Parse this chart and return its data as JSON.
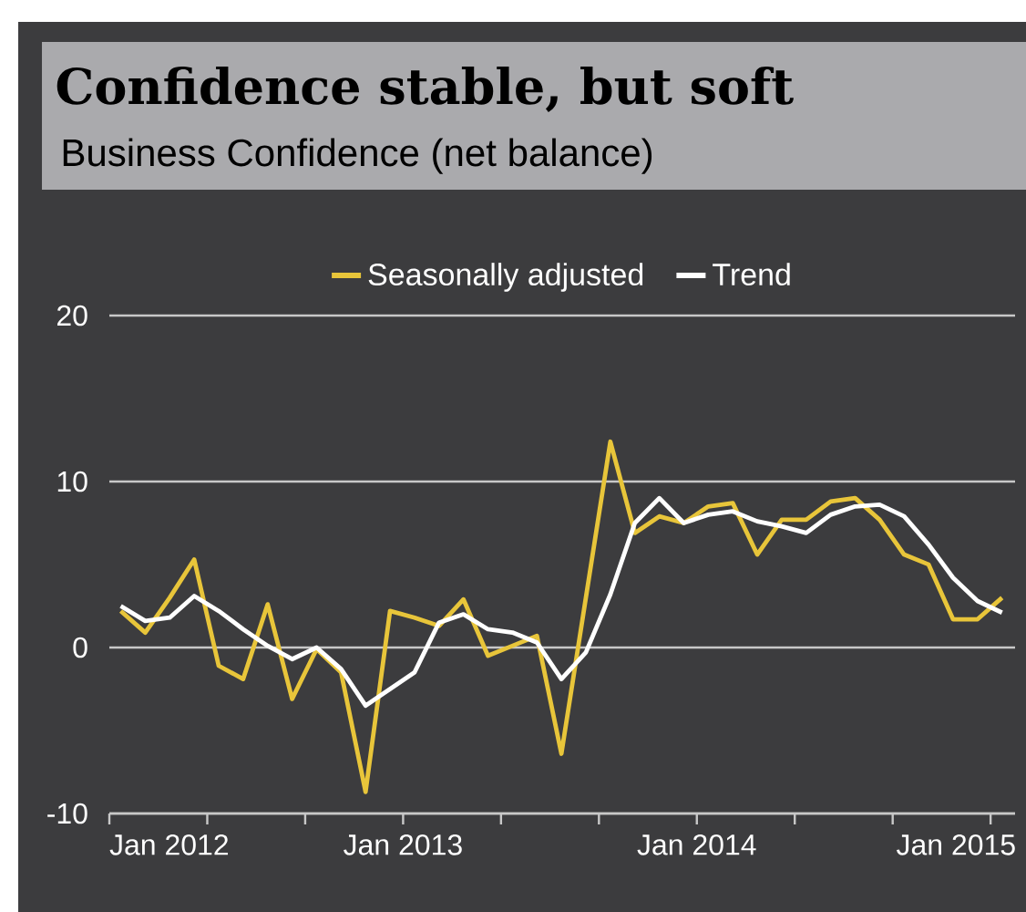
{
  "chart_data": {
    "type": "line",
    "title": "Confidence stable, but soft",
    "subtitle": "Business Confidence (net balance)",
    "x": [
      "2012-01-15",
      "2012-02-15",
      "2012-03-15",
      "2012-04-15",
      "2012-05-15",
      "2012-06-15",
      "2012-07-15",
      "2012-08-15",
      "2012-09-15",
      "2012-10-15",
      "2012-11-15",
      "2012-12-15",
      "2013-01-15",
      "2013-02-15",
      "2013-03-15",
      "2013-04-15",
      "2013-05-15",
      "2013-06-15",
      "2013-07-15",
      "2013-08-15",
      "2013-09-15",
      "2013-10-15",
      "2013-11-15",
      "2013-12-15",
      "2014-01-15",
      "2014-02-15",
      "2014-03-15",
      "2014-04-15",
      "2014-05-15",
      "2014-06-15",
      "2014-07-15",
      "2014-08-15",
      "2014-09-15",
      "2014-10-15",
      "2014-11-15",
      "2014-12-15",
      "2015-01-15"
    ],
    "series": [
      {
        "name": "Seasonally adjusted",
        "color": "#e8c53a",
        "values": [
          2.2,
          0.9,
          3.0,
          5.3,
          -1.1,
          -1.9,
          2.6,
          -3.1,
          -0.1,
          -1.5,
          -8.7,
          2.2,
          1.8,
          1.3,
          2.9,
          -0.5,
          0.1,
          0.7,
          -6.4,
          3.0,
          12.4,
          6.9,
          7.9,
          7.5,
          8.5,
          8.7,
          5.6,
          7.7,
          7.7,
          8.8,
          9.0,
          7.7,
          5.6,
          5.0,
          1.7,
          1.7,
          3.0
        ]
      },
      {
        "name": "Trend",
        "color": "#ffffff",
        "values": [
          2.5,
          1.6,
          1.8,
          3.1,
          2.2,
          1.1,
          0.1,
          -0.7,
          0.0,
          -1.3,
          -3.5,
          -2.5,
          -1.5,
          1.5,
          2.0,
          1.1,
          0.9,
          0.3,
          -1.9,
          -0.3,
          3.2,
          7.5,
          9.0,
          7.5,
          8.0,
          8.2,
          7.6,
          7.3,
          6.9,
          8.0,
          8.5,
          8.6,
          7.9,
          6.2,
          4.2,
          2.8,
          2.1
        ]
      }
    ],
    "xlim": [
      "2012-01",
      "2015-02"
    ],
    "xticks": [
      {
        "value": "2012-01",
        "label": "Jan 2012"
      },
      {
        "value": "2012-05",
        "label": null
      },
      {
        "value": "2012-09",
        "label": null
      },
      {
        "value": "2013-01",
        "label": "Jan 2013"
      },
      {
        "value": "2013-05",
        "label": null
      },
      {
        "value": "2013-09",
        "label": null
      },
      {
        "value": "2014-01",
        "label": "Jan 2014"
      },
      {
        "value": "2014-05",
        "label": null
      },
      {
        "value": "2014-09",
        "label": null
      },
      {
        "value": "2015-01",
        "label": "Jan 2015"
      }
    ],
    "ylim": [
      -10,
      20
    ],
    "yticks": [
      -10,
      0,
      10,
      20
    ],
    "grid": "y",
    "legend": "top",
    "marker": "none",
    "line_style": "solid"
  }
}
